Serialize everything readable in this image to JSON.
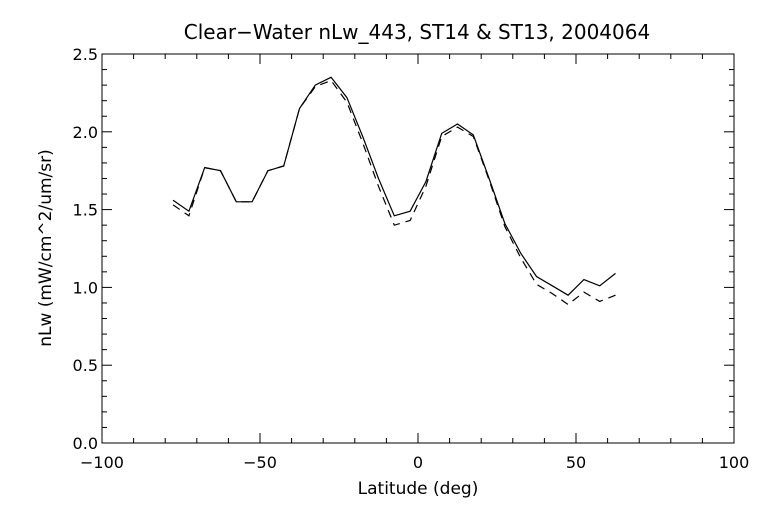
{
  "chart_data": {
    "type": "line",
    "title": "Clear−Water nLw_443, ST14 & ST13, 2004064",
    "xlabel": "Latitude (deg)",
    "ylabel": "nLw (mW/cm^2/um/sr)",
    "xlim": [
      -100,
      100
    ],
    "ylim": [
      0.0,
      2.5
    ],
    "xticks": [
      -100,
      -50,
      0,
      50,
      100
    ],
    "xtick_labels": [
      "−100",
      "−50",
      "0",
      "50",
      "100"
    ],
    "yticks": [
      0.0,
      0.5,
      1.0,
      1.5,
      2.0,
      2.5
    ],
    "ytick_labels": [
      "0.0",
      "0.5",
      "1.0",
      "1.5",
      "2.0",
      "2.5"
    ],
    "x_minor_step": 10,
    "y_minor_step": 0.1,
    "grid": false,
    "legend": "none",
    "series": [
      {
        "style": "solid",
        "color": "#000000",
        "x": [
          -77.5,
          -72.5,
          -67.5,
          -62.5,
          -57.5,
          -52.5,
          -47.5,
          -42.5,
          -37.5,
          -32.5,
          -27.5,
          -22.5,
          -17.5,
          -12.5,
          -7.5,
          -2.5,
          2.5,
          7.5,
          12.5,
          17.5,
          22.5,
          27.5,
          32.5,
          37.5,
          42.5,
          47.5,
          52.5,
          57.5,
          62.5
        ],
        "y": [
          1.56,
          1.49,
          1.77,
          1.75,
          1.55,
          1.55,
          1.75,
          1.78,
          2.15,
          2.3,
          2.35,
          2.22,
          1.97,
          1.7,
          1.46,
          1.49,
          1.68,
          1.99,
          2.05,
          1.98,
          1.7,
          1.41,
          1.22,
          1.07,
          1.01,
          0.95,
          1.05,
          1.01,
          1.09
        ]
      },
      {
        "style": "dashed",
        "color": "#000000",
        "x": [
          -77.5,
          -72.5,
          -67.5,
          -62.5,
          -57.5,
          -52.5,
          -47.5,
          -42.5,
          -37.5,
          -32.5,
          -27.5,
          -22.5,
          -17.5,
          -12.5,
          -7.5,
          -2.5,
          2.5,
          7.5,
          12.5,
          17.5,
          22.5,
          27.5,
          32.5,
          37.5,
          42.5,
          47.5,
          52.5,
          57.5,
          62.5
        ],
        "y": [
          1.53,
          1.46,
          1.77,
          1.75,
          1.55,
          1.55,
          1.75,
          1.78,
          2.15,
          2.29,
          2.33,
          2.19,
          1.93,
          1.65,
          1.4,
          1.43,
          1.65,
          1.97,
          2.03,
          1.97,
          1.69,
          1.39,
          1.19,
          1.02,
          0.96,
          0.89,
          0.97,
          0.91,
          0.95
        ]
      }
    ]
  }
}
